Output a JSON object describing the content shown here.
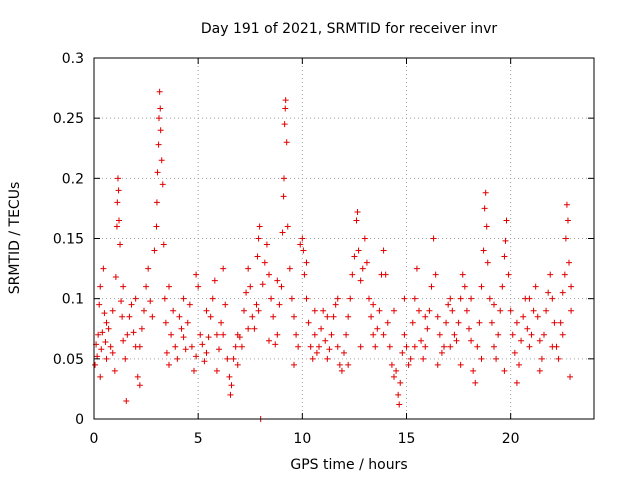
{
  "chart_data": {
    "type": "scatter",
    "title": "Day 191 of 2021, SRMTID for receiver invr",
    "xlabel": "GPS time / hours",
    "ylabel": "SRMTID / TECUs",
    "xlim": [
      0,
      24
    ],
    "ylim": [
      0,
      0.3
    ],
    "x_ticks": [
      0,
      5,
      10,
      15,
      20
    ],
    "y_ticks": [
      0,
      0.05,
      0.1,
      0.15,
      0.2,
      0.25,
      0.3
    ],
    "grid": true,
    "marker": "+",
    "color": "#e00000",
    "points": [
      [
        0.05,
        0.045
      ],
      [
        0.1,
        0.062
      ],
      [
        0.15,
        0.052
      ],
      [
        0.2,
        0.07
      ],
      [
        0.25,
        0.095
      ],
      [
        0.3,
        0.11
      ],
      [
        0.35,
        0.058
      ],
      [
        0.4,
        0.072
      ],
      [
        0.45,
        0.125
      ],
      [
        0.5,
        0.088
      ],
      [
        0.55,
        0.064
      ],
      [
        0.6,
        0.05
      ],
      [
        0.7,
        0.075
      ],
      [
        0.8,
        0.06
      ],
      [
        0.9,
        0.055
      ],
      [
        1.0,
        0.04
      ],
      [
        1.05,
        0.118
      ],
      [
        1.1,
        0.16
      ],
      [
        1.12,
        0.18
      ],
      [
        1.15,
        0.2
      ],
      [
        1.18,
        0.19
      ],
      [
        1.2,
        0.165
      ],
      [
        1.25,
        0.145
      ],
      [
        1.3,
        0.098
      ],
      [
        1.35,
        0.085
      ],
      [
        1.4,
        0.065
      ],
      [
        1.5,
        0.05
      ],
      [
        1.55,
        0.015
      ],
      [
        1.6,
        0.07
      ],
      [
        1.7,
        0.085
      ],
      [
        1.8,
        0.095
      ],
      [
        1.9,
        0.072
      ],
      [
        2.0,
        0.06
      ],
      [
        2.1,
        0.035
      ],
      [
        2.2,
        0.028
      ],
      [
        2.3,
        0.075
      ],
      [
        2.4,
        0.09
      ],
      [
        2.5,
        0.11
      ],
      [
        2.6,
        0.125
      ],
      [
        2.7,
        0.098
      ],
      [
        2.8,
        0.085
      ],
      [
        2.9,
        0.14
      ],
      [
        3.0,
        0.16
      ],
      [
        3.02,
        0.18
      ],
      [
        3.05,
        0.205
      ],
      [
        3.1,
        0.228
      ],
      [
        3.12,
        0.25
      ],
      [
        3.15,
        0.272
      ],
      [
        3.18,
        0.258
      ],
      [
        3.2,
        0.24
      ],
      [
        3.25,
        0.215
      ],
      [
        3.3,
        0.195
      ],
      [
        3.35,
        0.145
      ],
      [
        3.4,
        0.1
      ],
      [
        3.45,
        0.08
      ],
      [
        3.5,
        0.055
      ],
      [
        3.6,
        0.045
      ],
      [
        3.7,
        0.07
      ],
      [
        3.8,
        0.09
      ],
      [
        3.9,
        0.06
      ],
      [
        4.0,
        0.05
      ],
      [
        4.1,
        0.085
      ],
      [
        4.2,
        0.075
      ],
      [
        4.3,
        0.068
      ],
      [
        4.4,
        0.058
      ],
      [
        4.5,
        0.08
      ],
      [
        4.6,
        0.095
      ],
      [
        4.7,
        0.06
      ],
      [
        4.8,
        0.04
      ],
      [
        4.9,
        0.052
      ],
      [
        5.0,
        0.11
      ],
      [
        5.1,
        0.07
      ],
      [
        5.2,
        0.062
      ],
      [
        5.3,
        0.048
      ],
      [
        5.4,
        0.055
      ],
      [
        5.5,
        0.068
      ],
      [
        5.6,
        0.085
      ],
      [
        5.7,
        0.1
      ],
      [
        5.8,
        0.115
      ],
      [
        5.9,
        0.07
      ],
      [
        6.0,
        0.058
      ],
      [
        6.1,
        0.08
      ],
      [
        6.2,
        0.125
      ],
      [
        6.3,
        0.095
      ],
      [
        6.4,
        0.05
      ],
      [
        6.5,
        0.035
      ],
      [
        6.55,
        0.02
      ],
      [
        6.6,
        0.028
      ],
      [
        6.7,
        0.05
      ],
      [
        6.8,
        0.06
      ],
      [
        6.9,
        0.07
      ],
      [
        7.0,
        0.068
      ],
      [
        7.1,
        0.06
      ],
      [
        7.2,
        0.09
      ],
      [
        7.3,
        0.105
      ],
      [
        7.4,
        0.125
      ],
      [
        7.5,
        0.11
      ],
      [
        7.6,
        0.085
      ],
      [
        7.7,
        0.075
      ],
      [
        7.8,
        0.095
      ],
      [
        7.85,
        0.135
      ],
      [
        7.9,
        0.15
      ],
      [
        7.95,
        0.16
      ],
      [
        8.0,
        0.0
      ],
      [
        8.1,
        0.112
      ],
      [
        8.2,
        0.13
      ],
      [
        8.3,
        0.145
      ],
      [
        8.4,
        0.12
      ],
      [
        8.5,
        0.1
      ],
      [
        8.6,
        0.085
      ],
      [
        8.7,
        0.062
      ],
      [
        8.8,
        0.07
      ],
      [
        8.9,
        0.095
      ],
      [
        9.0,
        0.11
      ],
      [
        9.05,
        0.155
      ],
      [
        9.1,
        0.185
      ],
      [
        9.12,
        0.2
      ],
      [
        9.15,
        0.245
      ],
      [
        9.18,
        0.258
      ],
      [
        9.2,
        0.265
      ],
      [
        9.25,
        0.23
      ],
      [
        9.3,
        0.16
      ],
      [
        9.4,
        0.125
      ],
      [
        9.5,
        0.1
      ],
      [
        9.6,
        0.085
      ],
      [
        9.7,
        0.07
      ],
      [
        9.8,
        0.06
      ],
      [
        9.9,
        0.145
      ],
      [
        10.0,
        0.15
      ],
      [
        10.05,
        0.14
      ],
      [
        10.1,
        0.12
      ],
      [
        10.2,
        0.1
      ],
      [
        10.3,
        0.08
      ],
      [
        10.4,
        0.06
      ],
      [
        10.5,
        0.05
      ],
      [
        10.6,
        0.07
      ],
      [
        10.7,
        0.055
      ],
      [
        10.8,
        0.06
      ],
      [
        10.9,
        0.075
      ],
      [
        11.0,
        0.09
      ],
      [
        11.1,
        0.065
      ],
      [
        11.2,
        0.05
      ],
      [
        11.3,
        0.058
      ],
      [
        11.4,
        0.07
      ],
      [
        11.5,
        0.085
      ],
      [
        11.6,
        0.095
      ],
      [
        11.7,
        0.06
      ],
      [
        11.8,
        0.045
      ],
      [
        11.9,
        0.04
      ],
      [
        12.0,
        0.055
      ],
      [
        12.1,
        0.07
      ],
      [
        12.2,
        0.085
      ],
      [
        12.3,
        0.1
      ],
      [
        12.4,
        0.12
      ],
      [
        12.5,
        0.135
      ],
      [
        12.6,
        0.165
      ],
      [
        12.65,
        0.172
      ],
      [
        12.7,
        0.14
      ],
      [
        12.8,
        0.115
      ],
      [
        12.9,
        0.125
      ],
      [
        13.0,
        0.15
      ],
      [
        13.1,
        0.13
      ],
      [
        13.2,
        0.1
      ],
      [
        13.3,
        0.085
      ],
      [
        13.4,
        0.07
      ],
      [
        13.5,
        0.06
      ],
      [
        13.6,
        0.075
      ],
      [
        13.7,
        0.09
      ],
      [
        13.8,
        0.12
      ],
      [
        13.9,
        0.14
      ],
      [
        14.0,
        0.12
      ],
      [
        14.1,
        0.08
      ],
      [
        14.2,
        0.06
      ],
      [
        14.3,
        0.045
      ],
      [
        14.4,
        0.035
      ],
      [
        14.5,
        0.04
      ],
      [
        14.6,
        0.02
      ],
      [
        14.65,
        0.012
      ],
      [
        14.7,
        0.03
      ],
      [
        14.8,
        0.055
      ],
      [
        14.9,
        0.07
      ],
      [
        15.0,
        0.06
      ],
      [
        15.1,
        0.045
      ],
      [
        15.2,
        0.05
      ],
      [
        15.3,
        0.08
      ],
      [
        15.4,
        0.1
      ],
      [
        15.5,
        0.125
      ],
      [
        15.6,
        0.09
      ],
      [
        15.7,
        0.065
      ],
      [
        15.8,
        0.05
      ],
      [
        15.9,
        0.06
      ],
      [
        16.0,
        0.075
      ],
      [
        16.1,
        0.09
      ],
      [
        16.2,
        0.11
      ],
      [
        16.3,
        0.15
      ],
      [
        16.4,
        0.12
      ],
      [
        16.5,
        0.085
      ],
      [
        16.6,
        0.07
      ],
      [
        16.7,
        0.055
      ],
      [
        16.8,
        0.06
      ],
      [
        16.9,
        0.08
      ],
      [
        17.0,
        0.095
      ],
      [
        17.1,
        0.1
      ],
      [
        17.2,
        0.09
      ],
      [
        17.3,
        0.07
      ],
      [
        17.4,
        0.065
      ],
      [
        17.5,
        0.08
      ],
      [
        17.6,
        0.1
      ],
      [
        17.7,
        0.12
      ],
      [
        17.8,
        0.11
      ],
      [
        17.9,
        0.09
      ],
      [
        18.0,
        0.075
      ],
      [
        18.1,
        0.065
      ],
      [
        18.2,
        0.04
      ],
      [
        18.3,
        0.03
      ],
      [
        18.4,
        0.06
      ],
      [
        18.5,
        0.08
      ],
      [
        18.6,
        0.11
      ],
      [
        18.7,
        0.14
      ],
      [
        18.75,
        0.175
      ],
      [
        18.8,
        0.188
      ],
      [
        18.85,
        0.16
      ],
      [
        18.9,
        0.13
      ],
      [
        19.0,
        0.1
      ],
      [
        19.1,
        0.08
      ],
      [
        19.2,
        0.06
      ],
      [
        19.3,
        0.05
      ],
      [
        19.4,
        0.07
      ],
      [
        19.5,
        0.09
      ],
      [
        19.6,
        0.11
      ],
      [
        19.7,
        0.135
      ],
      [
        19.75,
        0.148
      ],
      [
        19.8,
        0.165
      ],
      [
        19.9,
        0.12
      ],
      [
        20.0,
        0.09
      ],
      [
        20.1,
        0.07
      ],
      [
        20.2,
        0.055
      ],
      [
        20.3,
        0.03
      ],
      [
        20.4,
        0.045
      ],
      [
        20.5,
        0.065
      ],
      [
        20.6,
        0.085
      ],
      [
        20.7,
        0.1
      ],
      [
        20.8,
        0.075
      ],
      [
        20.9,
        0.06
      ],
      [
        21.0,
        0.07
      ],
      [
        21.1,
        0.09
      ],
      [
        21.2,
        0.11
      ],
      [
        21.3,
        0.085
      ],
      [
        21.4,
        0.065
      ],
      [
        21.5,
        0.05
      ],
      [
        21.6,
        0.07
      ],
      [
        21.7,
        0.09
      ],
      [
        21.8,
        0.105
      ],
      [
        21.9,
        0.12
      ],
      [
        22.0,
        0.1
      ],
      [
        22.1,
        0.08
      ],
      [
        22.2,
        0.06
      ],
      [
        22.3,
        0.05
      ],
      [
        22.4,
        0.08
      ],
      [
        22.5,
        0.105
      ],
      [
        22.6,
        0.12
      ],
      [
        22.65,
        0.15
      ],
      [
        22.7,
        0.178
      ],
      [
        22.75,
        0.165
      ],
      [
        22.8,
        0.13
      ],
      [
        22.85,
        0.035
      ],
      [
        22.9,
        0.09
      ],
      [
        0.3,
        0.035
      ],
      [
        0.6,
        0.08
      ],
      [
        0.9,
        0.09
      ],
      [
        1.4,
        0.11
      ],
      [
        2.0,
        0.1
      ],
      [
        2.2,
        0.06
      ],
      [
        3.6,
        0.11
      ],
      [
        4.3,
        0.1
      ],
      [
        4.9,
        0.12
      ],
      [
        5.4,
        0.09
      ],
      [
        5.9,
        0.04
      ],
      [
        6.2,
        0.07
      ],
      [
        6.9,
        0.045
      ],
      [
        7.4,
        0.075
      ],
      [
        7.9,
        0.09
      ],
      [
        8.4,
        0.065
      ],
      [
        8.8,
        0.115
      ],
      [
        9.6,
        0.045
      ],
      [
        10.2,
        0.13
      ],
      [
        10.6,
        0.09
      ],
      [
        11.2,
        0.085
      ],
      [
        11.7,
        0.1
      ],
      [
        12.2,
        0.045
      ],
      [
        12.8,
        0.06
      ],
      [
        13.4,
        0.095
      ],
      [
        13.9,
        0.07
      ],
      [
        14.4,
        0.09
      ],
      [
        14.9,
        0.1
      ],
      [
        15.4,
        0.06
      ],
      [
        15.9,
        0.085
      ],
      [
        16.5,
        0.045
      ],
      [
        17.1,
        0.06
      ],
      [
        17.6,
        0.045
      ],
      [
        18.1,
        0.1
      ],
      [
        18.6,
        0.05
      ],
      [
        19.2,
        0.095
      ],
      [
        19.7,
        0.04
      ],
      [
        20.3,
        0.08
      ],
      [
        20.9,
        0.1
      ],
      [
        21.4,
        0.04
      ],
      [
        22.0,
        0.06
      ],
      [
        22.5,
        0.07
      ],
      [
        22.9,
        0.11
      ]
    ]
  }
}
